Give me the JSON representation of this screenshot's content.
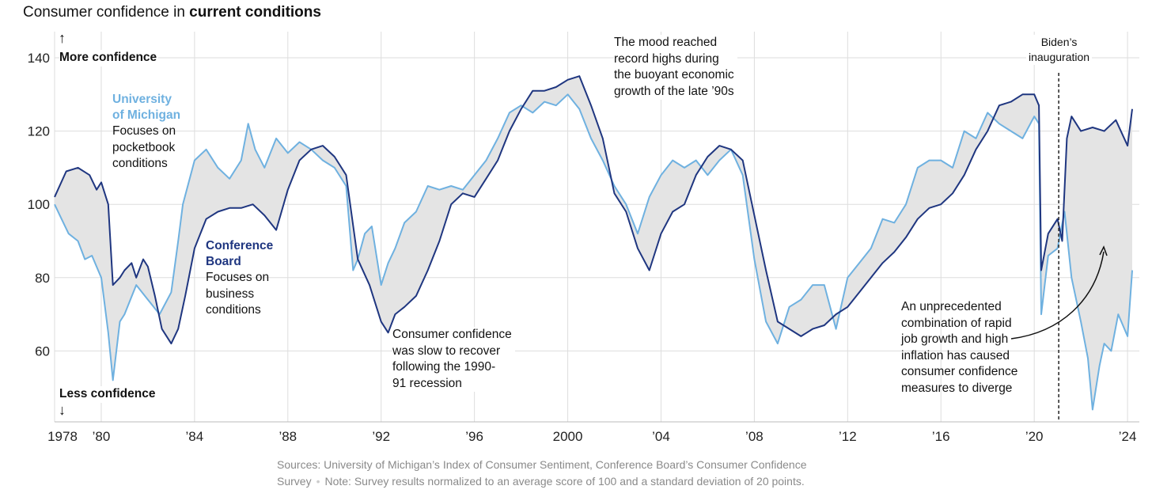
{
  "title": {
    "prefix": "Consumer confidence in ",
    "bold": "current conditions"
  },
  "axis_labels": {
    "more": "More confidence",
    "less": "Less confidence",
    "up_arrow": "↑",
    "down_arrow": "↓"
  },
  "legend": {
    "michigan": {
      "name_1": "University",
      "name_2": "of Michigan",
      "desc_1": "Focuses on",
      "desc_2": "pocketbook",
      "desc_3": "conditions"
    },
    "conference": {
      "name_1": "Conference",
      "name_2": "Board",
      "desc_1": "Focuses on",
      "desc_2": "business",
      "desc_3": "conditions"
    }
  },
  "annotations": {
    "recession": [
      "Consumer confidence",
      "was slow to recover",
      "following the 1990-",
      "91 recession"
    ],
    "nineties": [
      "The mood reached",
      "record highs during",
      "the buoyant economic",
      "growth of the late ’90s"
    ],
    "biden": [
      "Biden’s",
      "inauguration"
    ],
    "diverge": [
      "An unprecedented",
      "combination of rapid",
      "job growth and high",
      "inflation has caused",
      "consumer confidence",
      "measures to diverge"
    ]
  },
  "source": {
    "line1": "Sources: University of Michigan’s Index of Consumer Sentiment, Conference Board’s Consumer Confidence",
    "line2a": "Survey",
    "sep": "•",
    "line2b": "Note: Survey results normalized to an average score of 100 and a standard deviation of 20 points."
  },
  "colors": {
    "michigan": "#6fb1e0",
    "conference": "#1f3680",
    "fill": "#e4e4e4",
    "grid": "#dddddd"
  },
  "chart_data": {
    "type": "line",
    "title": "Consumer confidence in current conditions",
    "xlabel": "",
    "ylabel": "",
    "xlim": [
      1978,
      2024.3
    ],
    "ylim": [
      41,
      146
    ],
    "grid": true,
    "x_ticks": [
      {
        "v": 1978,
        "label": "1978"
      },
      {
        "v": 1980,
        "label": "’80"
      },
      {
        "v": 1984,
        "label": "’84"
      },
      {
        "v": 1988,
        "label": "’88"
      },
      {
        "v": 1992,
        "label": "’92"
      },
      {
        "v": 1996,
        "label": "’96"
      },
      {
        "v": 2000,
        "label": "2000"
      },
      {
        "v": 2004,
        "label": "’04"
      },
      {
        "v": 2008,
        "label": "’08"
      },
      {
        "v": 2012,
        "label": "’12"
      },
      {
        "v": 2016,
        "label": "’16"
      },
      {
        "v": 2020,
        "label": "’20"
      },
      {
        "v": 2024,
        "label": "’24"
      }
    ],
    "y_ticks": [
      {
        "v": 140,
        "label": "140"
      },
      {
        "v": 120,
        "label": "120"
      },
      {
        "v": 100,
        "label": "100"
      },
      {
        "v": 80,
        "label": "80"
      },
      {
        "v": 60,
        "label": "60"
      }
    ],
    "event_line": {
      "x": 2021.05,
      "label": "Biden’s inauguration"
    },
    "series": [
      {
        "name": "Conference Board",
        "x": [
          1978,
          1978.5,
          1979,
          1979.5,
          1979.8,
          1980,
          1980.3,
          1980.5,
          1980.8,
          1981,
          1981.3,
          1981.5,
          1981.8,
          1982,
          1982.3,
          1982.6,
          1983,
          1983.3,
          1983.6,
          1984,
          1984.5,
          1985,
          1985.5,
          1986,
          1986.5,
          1987,
          1987.5,
          1988,
          1988.5,
          1989,
          1989.5,
          1990,
          1990.5,
          1991,
          1991.5,
          1992,
          1992.3,
          1992.6,
          1993,
          1993.5,
          1994,
          1994.5,
          1995,
          1995.5,
          1996,
          1996.5,
          1997,
          1997.5,
          1998,
          1998.5,
          1999,
          1999.5,
          2000,
          2000.5,
          2001,
          2001.5,
          2002,
          2002.5,
          2003,
          2003.5,
          2004,
          2004.5,
          2005,
          2005.5,
          2006,
          2006.5,
          2007,
          2007.5,
          2008,
          2008.5,
          2009,
          2009.5,
          2010,
          2010.5,
          2011,
          2011.5,
          2012,
          2012.5,
          2013,
          2013.5,
          2014,
          2014.5,
          2015,
          2015.5,
          2016,
          2016.5,
          2017,
          2017.5,
          2018,
          2018.5,
          2019,
          2019.5,
          2020,
          2020.2,
          2020.3,
          2020.6,
          2021,
          2021.2,
          2021.4,
          2021.6,
          2022,
          2022.5,
          2023,
          2023.5,
          2024,
          2024.2
        ],
        "values": [
          102,
          109,
          110,
          108,
          104,
          106,
          100,
          78,
          80,
          82,
          84,
          80,
          85,
          83,
          75,
          66,
          62,
          66,
          75,
          88,
          96,
          98,
          99,
          99,
          100,
          97,
          93,
          104,
          112,
          115,
          116,
          113,
          108,
          85,
          78,
          68,
          65,
          70,
          72,
          75,
          82,
          90,
          100,
          103,
          102,
          107,
          112,
          120,
          126,
          131,
          131,
          132,
          134,
          135,
          127,
          118,
          103,
          98,
          88,
          82,
          92,
          98,
          100,
          108,
          113,
          116,
          115,
          112,
          97,
          82,
          68,
          66,
          64,
          66,
          67,
          70,
          72,
          76,
          80,
          84,
          87,
          91,
          96,
          99,
          100,
          103,
          108,
          115,
          120,
          127,
          128,
          130,
          130,
          127,
          82,
          92,
          96,
          90,
          118,
          124,
          120,
          121,
          120,
          123,
          116,
          126
        ]
      },
      {
        "name": "University of Michigan",
        "x": [
          1978,
          1978.3,
          1978.6,
          1979,
          1979.3,
          1979.6,
          1980,
          1980.3,
          1980.5,
          1980.8,
          1981,
          1981.5,
          1982,
          1982.5,
          1983,
          1983.3,
          1983.5,
          1984,
          1984.5,
          1985,
          1985.5,
          1986,
          1986.3,
          1986.6,
          1987,
          1987.5,
          1988,
          1988.5,
          1989,
          1989.5,
          1990,
          1990.5,
          1990.8,
          1991,
          1991.3,
          1991.6,
          1992,
          1992.3,
          1992.6,
          1993,
          1993.5,
          1994,
          1994.5,
          1995,
          1995.5,
          1996,
          1996.5,
          1997,
          1997.5,
          1998,
          1998.5,
          1999,
          1999.5,
          2000,
          2000.5,
          2001,
          2001.5,
          2002,
          2002.5,
          2003,
          2003.5,
          2004,
          2004.5,
          2005,
          2005.5,
          2006,
          2006.5,
          2007,
          2007.5,
          2008,
          2008.5,
          2009,
          2009.5,
          2010,
          2010.5,
          2011,
          2011.5,
          2012,
          2012.5,
          2013,
          2013.5,
          2014,
          2014.5,
          2015,
          2015.5,
          2016,
          2016.5,
          2017,
          2017.5,
          2018,
          2018.5,
          2019,
          2019.5,
          2020,
          2020.2,
          2020.3,
          2020.6,
          2021,
          2021.3,
          2021.6,
          2022,
          2022.3,
          2022.5,
          2022.8,
          2023,
          2023.3,
          2023.6,
          2024,
          2024.2
        ],
        "values": [
          100,
          96,
          92,
          90,
          85,
          86,
          80,
          65,
          52,
          68,
          70,
          78,
          74,
          70,
          76,
          90,
          100,
          112,
          115,
          110,
          107,
          112,
          122,
          115,
          110,
          118,
          114,
          117,
          115,
          112,
          110,
          105,
          82,
          85,
          92,
          94,
          78,
          84,
          88,
          95,
          98,
          105,
          104,
          105,
          104,
          108,
          112,
          118,
          125,
          127,
          125,
          128,
          127,
          130,
          126,
          118,
          112,
          105,
          100,
          92,
          102,
          108,
          112,
          110,
          112,
          108,
          112,
          115,
          108,
          85,
          68,
          62,
          72,
          74,
          78,
          78,
          66,
          80,
          84,
          88,
          96,
          95,
          100,
          110,
          112,
          112,
          110,
          120,
          118,
          125,
          122,
          120,
          118,
          124,
          122,
          70,
          86,
          88,
          98,
          80,
          68,
          58,
          44,
          56,
          62,
          60,
          70,
          64,
          82
        ]
      }
    ]
  }
}
